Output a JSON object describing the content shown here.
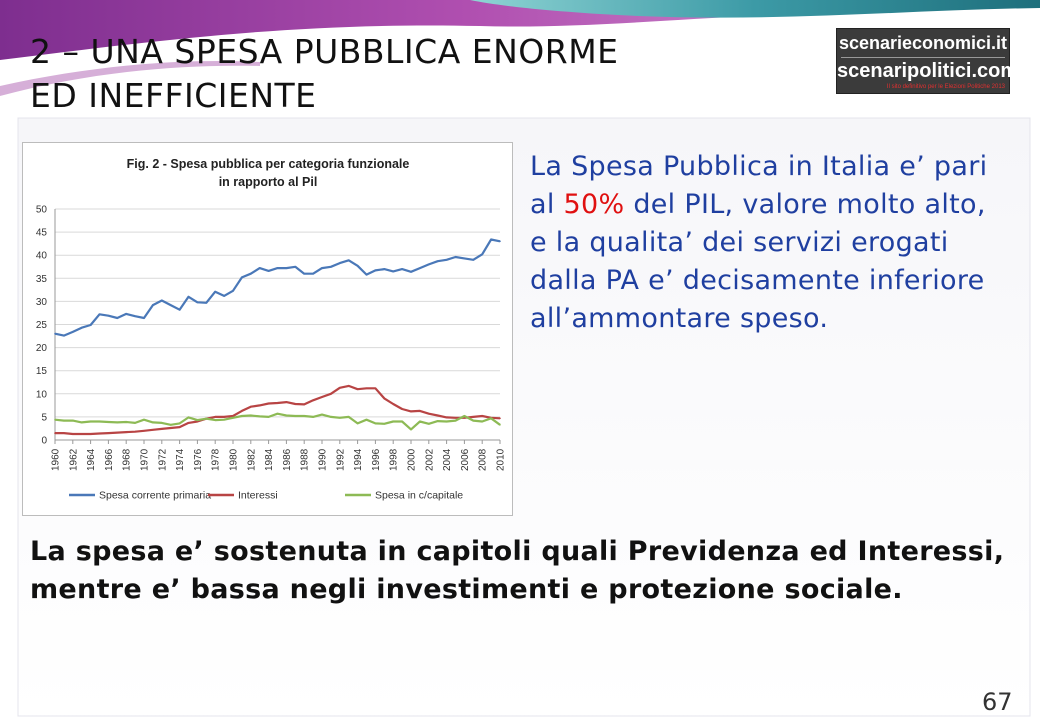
{
  "slide": {
    "title_line1": "2 – UNA SPESA PUBBLICA ENORME",
    "title_line2": "ED INEFFICIENTE",
    "page_number": "67",
    "logo": {
      "line1": "scenarieconomici.it",
      "line2": "scenaripolitici.com",
      "tagline": "Il sito definitivo per le Elezioni Politiche 2013"
    },
    "side_text": {
      "part1": "La Spesa Pubblica in Italia e’ pari al ",
      "highlight": "50%",
      "part2": " del PIL, valore molto alto, e la qualita’ dei servizi erogati dalla PA e’ decisamente inferiore all’ammontare speso."
    },
    "bottom_text": "La spesa e’ sostenuta in capitoli quali Previdenza ed Interessi, mentre e’ bassa negli investimenti e protezione sociale.",
    "colors": {
      "side_text": "#1f3fa0",
      "highlight": "#e01010"
    }
  },
  "chart_data": {
    "type": "line",
    "title": "Fig. 2 - Spesa pubblica per categoria funzionale in rapporto al Pil",
    "ylim": [
      0,
      50
    ],
    "yticks": [
      0,
      5,
      10,
      15,
      20,
      25,
      30,
      35,
      40,
      45,
      50
    ],
    "grid": true,
    "legend_position": "bottom",
    "x": [
      1960,
      1961,
      1962,
      1963,
      1964,
      1965,
      1966,
      1967,
      1968,
      1969,
      1970,
      1971,
      1972,
      1973,
      1974,
      1975,
      1976,
      1977,
      1978,
      1979,
      1980,
      1981,
      1982,
      1983,
      1984,
      1985,
      1986,
      1987,
      1988,
      1989,
      1990,
      1991,
      1992,
      1993,
      1994,
      1995,
      1996,
      1997,
      1998,
      1999,
      2000,
      2001,
      2002,
      2003,
      2004,
      2005,
      2006,
      2007,
      2008,
      2009,
      2010
    ],
    "xtick_labels": [
      "1960",
      "1962",
      "1964",
      "1966",
      "1968",
      "1970",
      "1972",
      "1974",
      "1976",
      "1978",
      "1980",
      "1982",
      "1984",
      "1986",
      "1988",
      "1990",
      "1992",
      "1994",
      "1996",
      "1998",
      "2000",
      "2002",
      "2004",
      "2006",
      "2008",
      "2010"
    ],
    "series": [
      {
        "name": "Spesa corrente primaria",
        "color": "#4a78b8",
        "values": [
          23.0,
          22.6,
          23.4,
          24.3,
          24.9,
          27.2,
          26.9,
          26.4,
          27.3,
          26.8,
          26.4,
          29.2,
          30.2,
          29.2,
          28.2,
          31.0,
          29.8,
          29.7,
          32.1,
          31.2,
          32.3,
          35.2,
          36.0,
          37.2,
          36.6,
          37.2,
          37.2,
          37.5,
          36.0,
          36.0,
          37.2,
          37.5,
          38.3,
          38.9,
          37.7,
          35.8,
          36.7,
          37.0,
          36.5,
          37.0,
          36.4,
          37.2,
          38.0,
          38.7,
          39.0,
          39.6,
          39.3,
          39.0,
          40.2,
          43.4,
          43.0
        ]
      },
      {
        "name": "Interessi",
        "color": "#b84444",
        "values": [
          1.5,
          1.5,
          1.3,
          1.3,
          1.3,
          1.4,
          1.5,
          1.6,
          1.7,
          1.8,
          2.0,
          2.2,
          2.4,
          2.6,
          2.8,
          3.7,
          4.0,
          4.6,
          5.0,
          5.0,
          5.2,
          6.3,
          7.2,
          7.5,
          7.9,
          8.0,
          8.2,
          7.8,
          7.7,
          8.6,
          9.3,
          10.0,
          11.3,
          11.7,
          11.0,
          11.2,
          11.2,
          9.0,
          7.8,
          6.7,
          6.2,
          6.3,
          5.7,
          5.3,
          4.9,
          4.8,
          4.8,
          5.0,
          5.2,
          4.8,
          4.7
        ]
      },
      {
        "name": "Spesa in c/capitale",
        "color": "#8dba55",
        "values": [
          4.4,
          4.2,
          4.2,
          3.8,
          4.0,
          4.0,
          3.9,
          3.8,
          3.9,
          3.7,
          4.4,
          3.8,
          3.7,
          3.3,
          3.6,
          4.9,
          4.3,
          4.6,
          4.3,
          4.4,
          4.8,
          5.2,
          5.3,
          5.1,
          5.0,
          5.7,
          5.3,
          5.2,
          5.2,
          5.0,
          5.5,
          5.0,
          4.8,
          5.0,
          3.6,
          4.4,
          3.6,
          3.5,
          4.0,
          4.0,
          2.3,
          4.0,
          3.5,
          4.1,
          4.0,
          4.2,
          5.2,
          4.2,
          4.0,
          4.7,
          3.3
        ]
      }
    ]
  }
}
